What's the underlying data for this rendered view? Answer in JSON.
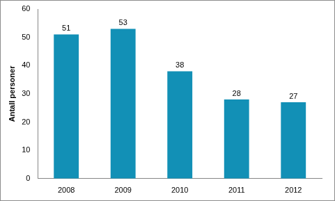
{
  "chart_data": {
    "type": "bar",
    "y_label": "Antall personer",
    "categories": [
      "2008",
      "2009",
      "2010",
      "2011",
      "2012"
    ],
    "values": [
      51,
      53,
      38,
      28,
      27
    ],
    "color": "#1290b6",
    "ylim": [
      0,
      60
    ],
    "yticks": [
      0,
      10,
      20,
      30,
      40,
      50,
      60
    ],
    "grid": false,
    "data_labels": true
  }
}
